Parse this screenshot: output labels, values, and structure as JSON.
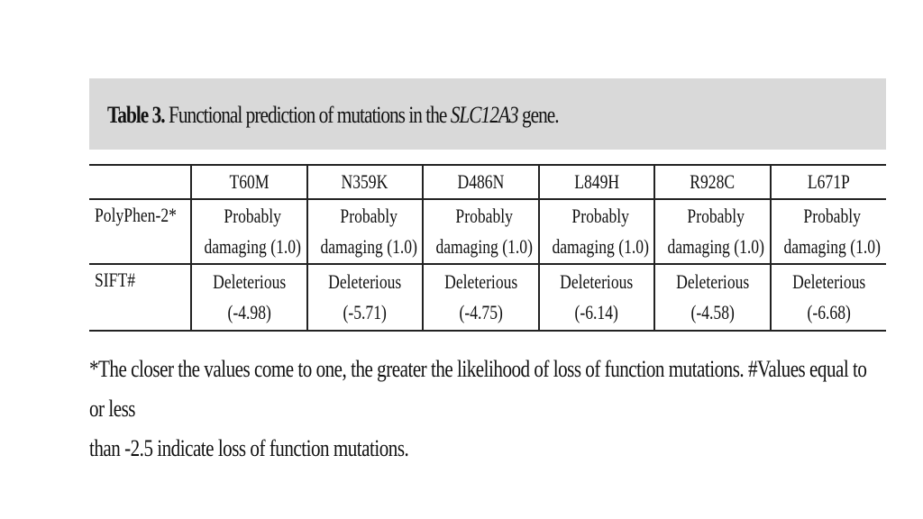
{
  "title": {
    "label": "Table 3.",
    "text_before": " Functional prediction of mutations in the ",
    "gene": "SLC12A3",
    "text_after": " gene."
  },
  "table": {
    "columns": [
      "",
      "T60M",
      "N359K",
      "D486N",
      "L849H",
      "R928C",
      "L671P"
    ],
    "rows": [
      {
        "label": "PolyPhen-2*",
        "cells": [
          [
            "Probably",
            "damaging (1.0)"
          ],
          [
            "Probably",
            "damaging (1.0)"
          ],
          [
            "Probably",
            "damaging (1.0)"
          ],
          [
            "Probably",
            "damaging (1.0)"
          ],
          [
            "Probably",
            "damaging (1.0)"
          ],
          [
            "Probably",
            "damaging (1.0)"
          ]
        ]
      },
      {
        "label": "SIFT#",
        "cells": [
          [
            "Deleterious",
            "(-4.98)"
          ],
          [
            "Deleterious",
            "(-5.71)"
          ],
          [
            "Deleterious",
            "(-4.75)"
          ],
          [
            "Deleterious",
            "(-6.14)"
          ],
          [
            "Deleterious",
            "(-4.58)"
          ],
          [
            "Deleterious",
            "(-6.68)"
          ]
        ]
      }
    ]
  },
  "footnote": {
    "line1": "*The closer the values come to one, the greater the likelihood of loss of function mutations. #Values equal to or less",
    "line2": "than -2.5 indicate loss of function mutations."
  },
  "colors": {
    "title_bar_background": "#d9d9d9",
    "text": "#111111",
    "rule": "#222222"
  }
}
